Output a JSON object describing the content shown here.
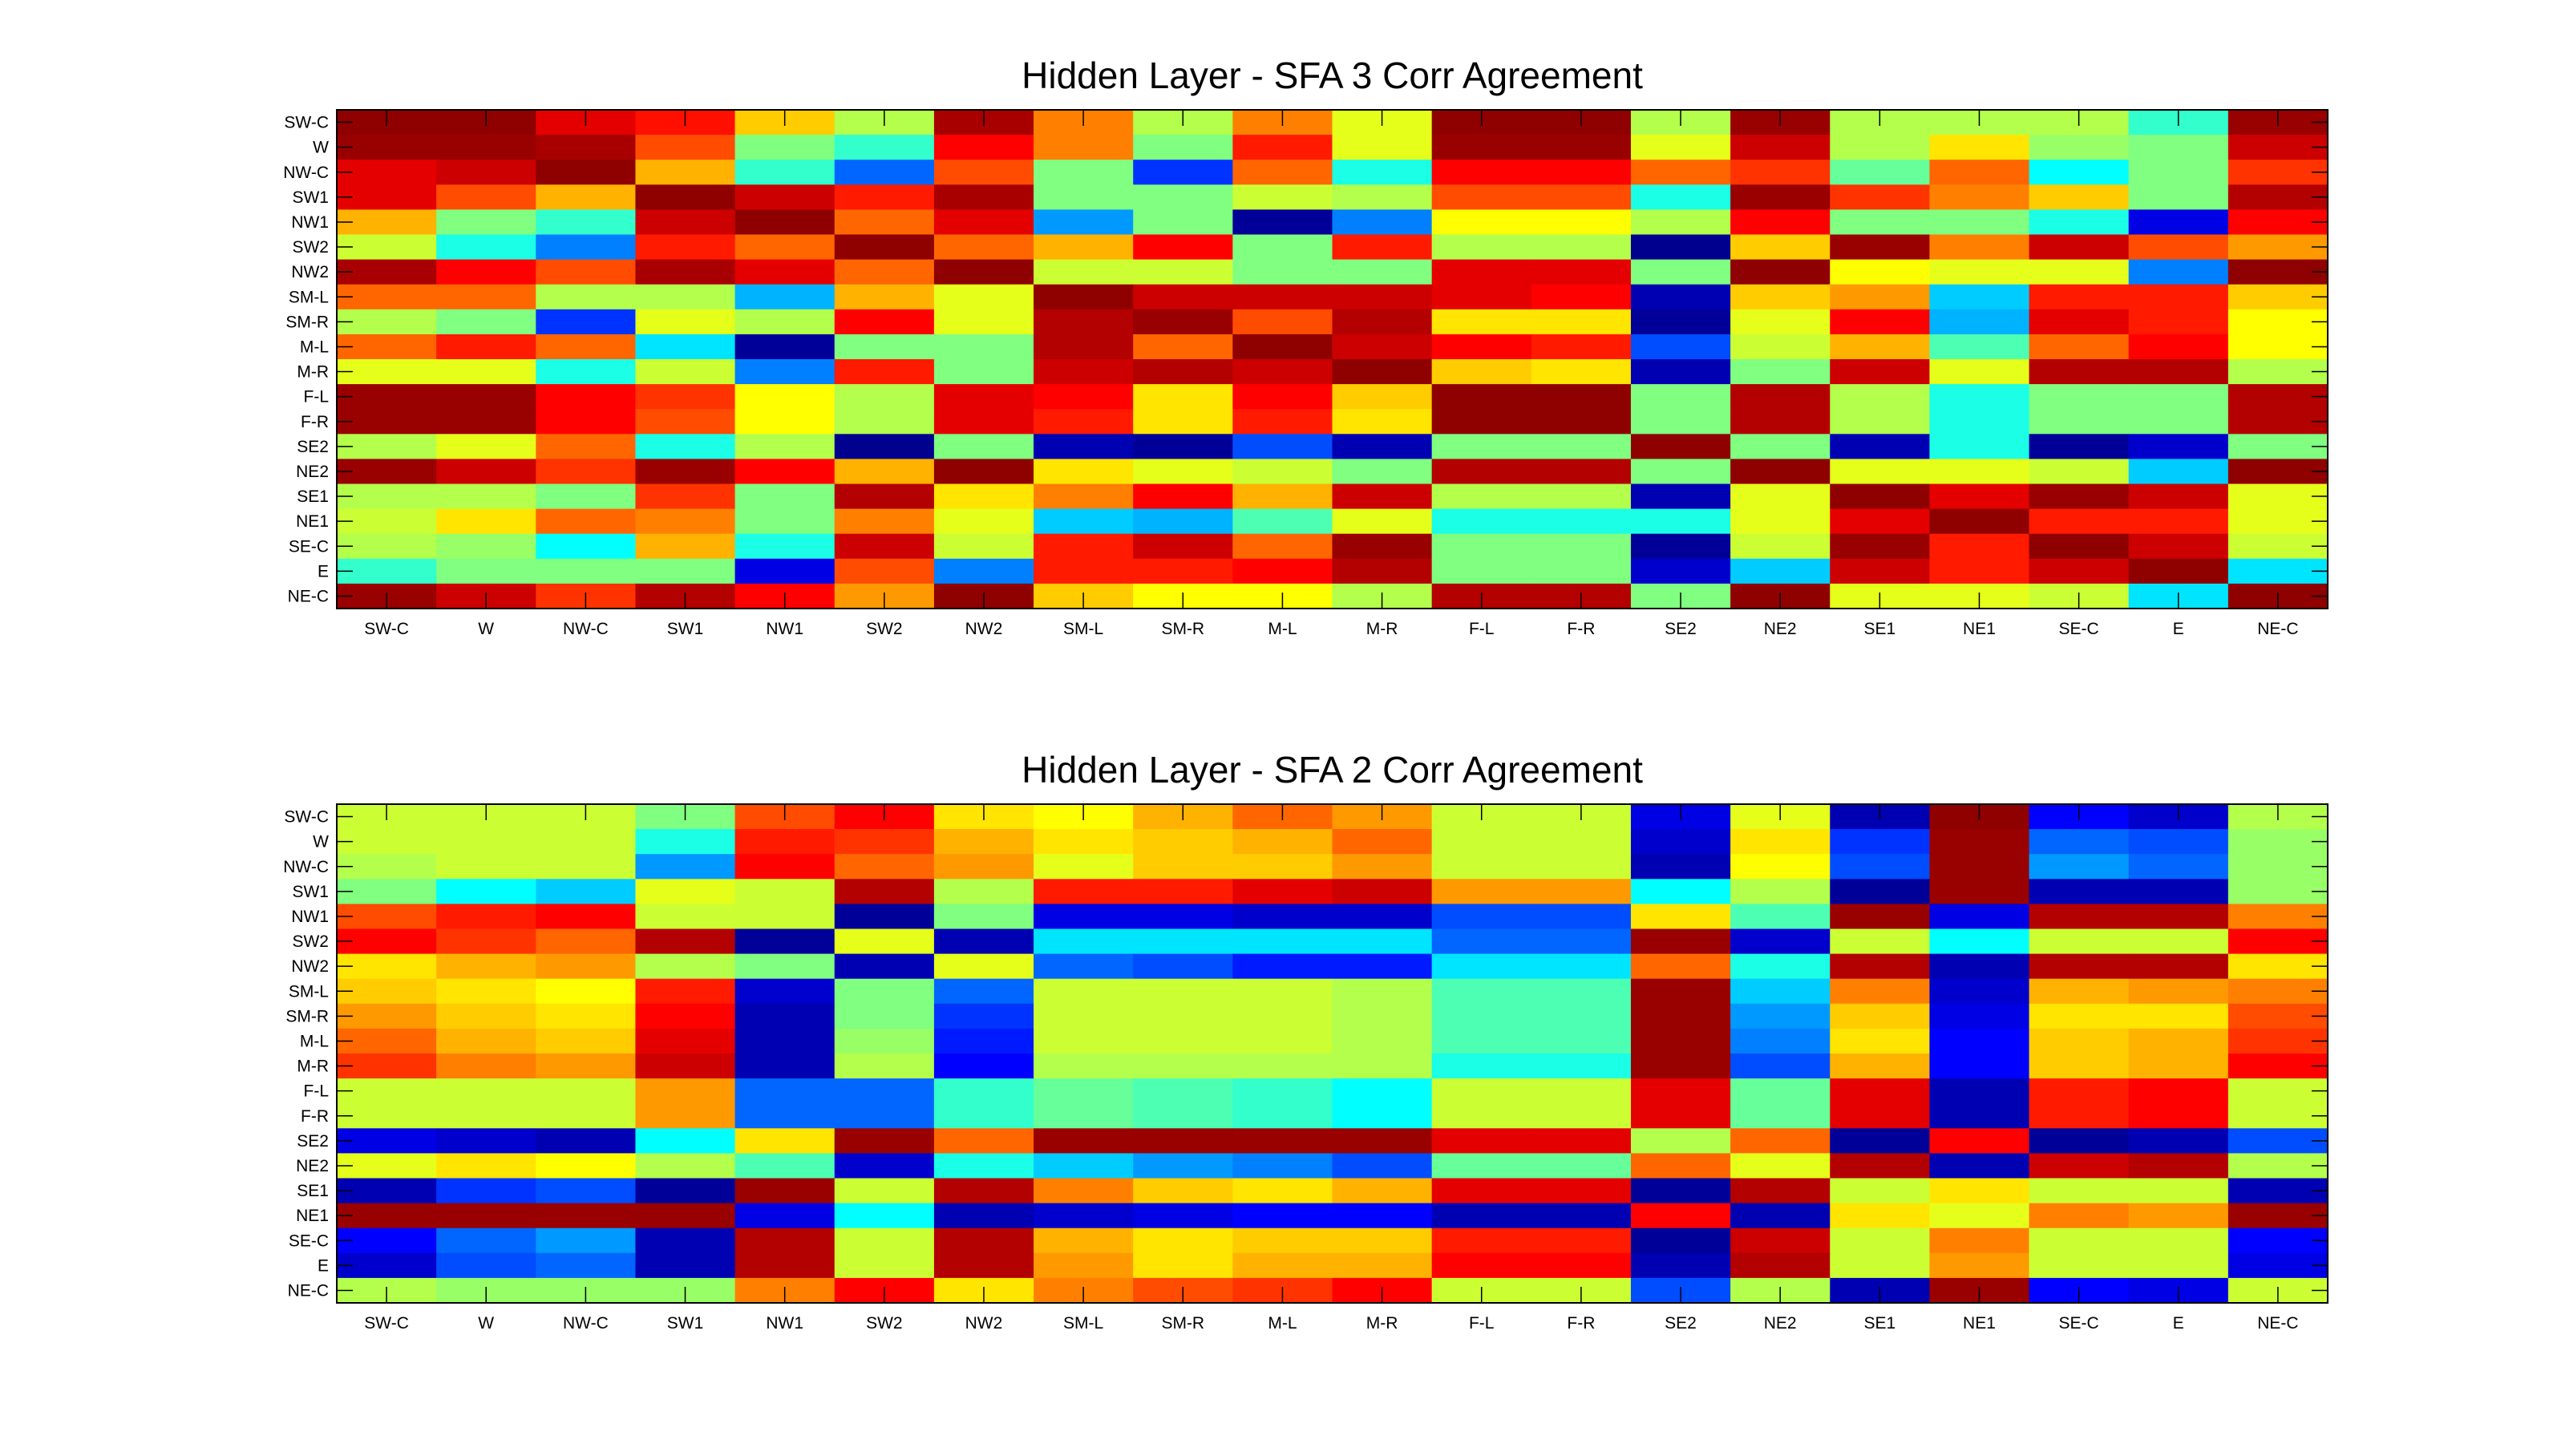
{
  "chart_data": [
    {
      "type": "heatmap",
      "title": "Hidden Layer - SFA 3 Corr Agreement",
      "colormap": "jet",
      "clim": [
        -1,
        1
      ],
      "x_labels": [
        "SW-C",
        "W",
        "NW-C",
        "SW1",
        "NW1",
        "SW2",
        "NW2",
        "SM-L",
        "SM-R",
        "M-L",
        "M-R",
        "F-L",
        "F-R",
        "SE2",
        "NE2",
        "SE1",
        "NE1",
        "SE-C",
        "E",
        "NE-C"
      ],
      "y_labels": [
        "SW-C",
        "W",
        "NW-C",
        "SW1",
        "NW1",
        "SW2",
        "NW2",
        "SM-L",
        "SM-R",
        "M-L",
        "M-R",
        "F-L",
        "F-R",
        "SE2",
        "NE2",
        "SE1",
        "NE1",
        "SE-C",
        "E",
        "NE-C"
      ],
      "values": [
        [
          0.97,
          0.97,
          0.8,
          0.72,
          0.35,
          0.1,
          0.92,
          0.5,
          0.1,
          0.5,
          0.2,
          0.97,
          0.97,
          0.1,
          0.95,
          0.1,
          0.1,
          0.1,
          -0.15,
          0.95
        ],
        [
          0.95,
          0.95,
          0.92,
          0.6,
          0.0,
          -0.15,
          0.75,
          0.5,
          0.0,
          0.7,
          0.2,
          0.95,
          0.95,
          0.2,
          0.85,
          0.1,
          0.3,
          0.05,
          0.0,
          0.85
        ],
        [
          0.8,
          0.85,
          0.97,
          0.4,
          -0.15,
          -0.55,
          0.6,
          0.0,
          -0.65,
          0.55,
          -0.2,
          0.75,
          0.75,
          0.55,
          0.65,
          -0.05,
          0.55,
          -0.25,
          0.0,
          0.65
        ],
        [
          0.8,
          0.6,
          0.4,
          0.97,
          0.85,
          0.7,
          0.92,
          0.0,
          0.0,
          0.15,
          0.1,
          0.6,
          0.6,
          -0.2,
          0.95,
          0.65,
          0.5,
          0.35,
          0.0,
          0.9
        ],
        [
          0.4,
          0.0,
          -0.15,
          0.85,
          0.97,
          0.55,
          0.8,
          -0.45,
          0.0,
          -0.95,
          -0.5,
          0.25,
          0.25,
          0.1,
          0.75,
          0.0,
          0.0,
          -0.2,
          -0.8,
          0.75
        ],
        [
          0.15,
          -0.2,
          -0.5,
          0.7,
          0.55,
          0.97,
          0.55,
          0.4,
          0.75,
          0.0,
          0.7,
          0.1,
          0.1,
          -0.97,
          0.35,
          0.95,
          0.5,
          0.85,
          0.6,
          0.45
        ],
        [
          0.92,
          0.75,
          0.6,
          0.92,
          0.8,
          0.55,
          0.97,
          0.15,
          0.15,
          0.0,
          0.0,
          0.8,
          0.8,
          0.0,
          0.97,
          0.25,
          0.2,
          0.2,
          -0.5,
          0.97
        ],
        [
          0.55,
          0.55,
          0.1,
          0.1,
          -0.4,
          0.4,
          0.2,
          0.97,
          0.85,
          0.85,
          0.85,
          0.8,
          0.75,
          -0.9,
          0.35,
          0.45,
          -0.35,
          0.7,
          0.7,
          0.35
        ],
        [
          0.1,
          0.0,
          -0.65,
          0.2,
          0.1,
          0.75,
          0.2,
          0.9,
          0.95,
          0.6,
          0.9,
          0.3,
          0.3,
          -0.95,
          0.2,
          0.75,
          -0.4,
          0.8,
          0.7,
          0.25
        ],
        [
          0.55,
          0.7,
          0.55,
          -0.3,
          -0.95,
          0.0,
          0.0,
          0.9,
          0.55,
          0.97,
          0.85,
          0.75,
          0.7,
          -0.6,
          0.15,
          0.4,
          -0.1,
          0.55,
          0.75,
          0.25
        ],
        [
          0.2,
          0.2,
          -0.2,
          0.15,
          -0.5,
          0.7,
          0.0,
          0.85,
          0.9,
          0.85,
          0.97,
          0.35,
          0.3,
          -0.9,
          0.0,
          0.85,
          0.2,
          0.9,
          0.9,
          0.1
        ],
        [
          0.95,
          0.95,
          0.75,
          0.65,
          0.25,
          0.1,
          0.8,
          0.75,
          0.3,
          0.75,
          0.35,
          0.97,
          0.97,
          0.0,
          0.9,
          0.1,
          -0.2,
          0.0,
          0.0,
          0.9
        ],
        [
          0.95,
          0.95,
          0.75,
          0.6,
          0.25,
          0.1,
          0.8,
          0.7,
          0.3,
          0.7,
          0.3,
          0.97,
          0.97,
          0.0,
          0.9,
          0.1,
          -0.2,
          0.0,
          0.0,
          0.9
        ],
        [
          0.1,
          0.2,
          0.55,
          -0.2,
          0.1,
          -0.97,
          0.0,
          -0.9,
          -0.95,
          -0.6,
          -0.9,
          0.0,
          0.0,
          0.97,
          0.0,
          -0.9,
          -0.2,
          -0.95,
          -0.85,
          0.0
        ],
        [
          0.95,
          0.85,
          0.65,
          0.95,
          0.75,
          0.4,
          0.97,
          0.3,
          0.2,
          0.15,
          0.0,
          0.9,
          0.9,
          0.0,
          0.97,
          0.2,
          0.2,
          0.15,
          -0.35,
          0.97
        ],
        [
          0.1,
          0.1,
          0.0,
          0.65,
          0.0,
          0.9,
          0.3,
          0.5,
          0.75,
          0.4,
          0.85,
          0.1,
          0.1,
          -0.9,
          0.2,
          0.97,
          0.8,
          0.95,
          0.85,
          0.2
        ],
        [
          0.15,
          0.3,
          0.55,
          0.5,
          0.0,
          0.5,
          0.2,
          -0.35,
          -0.4,
          -0.1,
          0.2,
          -0.2,
          -0.2,
          -0.2,
          0.2,
          0.8,
          0.97,
          0.7,
          0.7,
          0.2
        ],
        [
          0.1,
          0.05,
          -0.25,
          0.4,
          -0.2,
          0.85,
          0.15,
          0.7,
          0.85,
          0.55,
          0.95,
          0.0,
          0.0,
          -0.95,
          0.15,
          0.95,
          0.7,
          0.97,
          0.85,
          0.15
        ],
        [
          -0.15,
          0.0,
          0.0,
          0.0,
          -0.8,
          0.6,
          -0.5,
          0.7,
          0.7,
          0.75,
          0.9,
          0.0,
          0.0,
          -0.85,
          -0.35,
          0.85,
          0.7,
          0.85,
          0.97,
          -0.3
        ],
        [
          0.95,
          0.85,
          0.65,
          0.9,
          0.75,
          0.45,
          0.97,
          0.35,
          0.25,
          0.25,
          0.1,
          0.9,
          0.9,
          0.0,
          0.97,
          0.2,
          0.2,
          0.15,
          -0.3,
          0.97
        ]
      ]
    },
    {
      "type": "heatmap",
      "title": "Hidden Layer - SFA 2 Corr Agreement",
      "colormap": "jet",
      "clim": [
        -1,
        1
      ],
      "x_labels": [
        "SW-C",
        "W",
        "NW-C",
        "SW1",
        "NW1",
        "SW2",
        "NW2",
        "SM-L",
        "SM-R",
        "M-L",
        "M-R",
        "F-L",
        "F-R",
        "SE2",
        "NE2",
        "SE1",
        "NE1",
        "SE-C",
        "E",
        "NE-C"
      ],
      "y_labels": [
        "SW-C",
        "W",
        "NW-C",
        "SW1",
        "NW1",
        "SW2",
        "NW2",
        "SM-L",
        "SM-R",
        "M-L",
        "M-R",
        "F-L",
        "F-R",
        "SE2",
        "NE2",
        "SE1",
        "NE1",
        "SE-C",
        "E",
        "NE-C"
      ],
      "values": [
        [
          0.15,
          0.15,
          0.15,
          0.0,
          0.6,
          0.75,
          0.3,
          0.25,
          0.4,
          0.55,
          0.45,
          0.15,
          0.15,
          -0.8,
          0.2,
          -0.9,
          0.97,
          -0.75,
          -0.85,
          0.1
        ],
        [
          0.15,
          0.15,
          0.15,
          -0.2,
          0.7,
          0.65,
          0.4,
          0.3,
          0.35,
          0.4,
          0.55,
          0.15,
          0.15,
          -0.85,
          0.3,
          -0.65,
          0.95,
          -0.55,
          -0.6,
          0.05
        ],
        [
          0.1,
          0.15,
          0.15,
          -0.45,
          0.75,
          0.55,
          0.45,
          0.2,
          0.35,
          0.35,
          0.45,
          0.15,
          0.15,
          -0.9,
          0.25,
          -0.6,
          0.95,
          -0.45,
          -0.55,
          0.05
        ],
        [
          0.0,
          -0.25,
          -0.35,
          0.2,
          0.15,
          0.9,
          0.1,
          0.7,
          0.7,
          0.8,
          0.85,
          0.45,
          0.45,
          -0.25,
          0.1,
          -0.95,
          0.95,
          -0.9,
          -0.9,
          0.05
        ],
        [
          0.6,
          0.7,
          0.75,
          0.15,
          0.15,
          -0.95,
          0.0,
          -0.8,
          -0.8,
          -0.85,
          -0.85,
          -0.6,
          -0.6,
          0.3,
          -0.1,
          0.95,
          -0.8,
          0.9,
          0.9,
          0.5
        ],
        [
          0.75,
          0.65,
          0.55,
          0.9,
          -0.95,
          0.2,
          -0.9,
          -0.3,
          -0.3,
          -0.3,
          -0.3,
          -0.55,
          -0.55,
          0.95,
          -0.85,
          0.15,
          -0.25,
          0.15,
          0.15,
          0.75
        ],
        [
          0.3,
          0.4,
          0.45,
          0.1,
          0.0,
          -0.9,
          0.2,
          -0.55,
          -0.6,
          -0.7,
          -0.7,
          -0.3,
          -0.3,
          0.55,
          -0.2,
          0.9,
          -0.9,
          0.9,
          0.9,
          0.3
        ],
        [
          0.35,
          0.3,
          0.25,
          0.7,
          -0.85,
          0.0,
          -0.55,
          0.15,
          0.15,
          0.15,
          0.1,
          -0.1,
          -0.1,
          0.95,
          -0.35,
          0.5,
          -0.85,
          0.4,
          0.45,
          0.5
        ],
        [
          0.45,
          0.35,
          0.3,
          0.75,
          -0.9,
          0.0,
          -0.65,
          0.15,
          0.15,
          0.15,
          0.1,
          -0.1,
          -0.1,
          0.95,
          -0.45,
          0.35,
          -0.8,
          0.3,
          0.3,
          0.6
        ],
        [
          0.55,
          0.4,
          0.35,
          0.8,
          -0.9,
          0.05,
          -0.7,
          0.15,
          0.15,
          0.15,
          0.1,
          -0.1,
          -0.1,
          0.95,
          -0.5,
          0.3,
          -0.75,
          0.35,
          0.4,
          0.65
        ],
        [
          0.65,
          0.5,
          0.45,
          0.85,
          -0.9,
          0.1,
          -0.75,
          0.1,
          0.1,
          0.1,
          0.1,
          -0.2,
          -0.2,
          0.95,
          -0.6,
          0.4,
          -0.75,
          0.35,
          0.4,
          0.75
        ],
        [
          0.15,
          0.15,
          0.15,
          0.45,
          -0.55,
          -0.55,
          -0.15,
          -0.05,
          -0.1,
          -0.15,
          -0.25,
          0.15,
          0.15,
          0.8,
          -0.05,
          0.8,
          -0.9,
          0.7,
          0.75,
          0.15
        ],
        [
          0.15,
          0.15,
          0.15,
          0.45,
          -0.55,
          -0.55,
          -0.15,
          -0.05,
          -0.1,
          -0.15,
          -0.25,
          0.15,
          0.15,
          0.8,
          -0.05,
          0.8,
          -0.9,
          0.7,
          0.75,
          0.15
        ],
        [
          -0.8,
          -0.85,
          -0.9,
          -0.25,
          0.3,
          0.95,
          0.55,
          0.95,
          0.95,
          0.95,
          0.95,
          0.8,
          0.8,
          0.1,
          0.55,
          -0.95,
          0.75,
          -0.95,
          -0.9,
          -0.6
        ],
        [
          0.2,
          0.3,
          0.25,
          0.1,
          -0.1,
          -0.85,
          -0.2,
          -0.35,
          -0.45,
          -0.5,
          -0.6,
          -0.05,
          -0.05,
          0.55,
          0.2,
          0.9,
          -0.9,
          0.85,
          0.9,
          0.1
        ],
        [
          -0.9,
          -0.65,
          -0.6,
          -0.95,
          0.95,
          0.15,
          0.9,
          0.5,
          0.35,
          0.3,
          0.4,
          0.8,
          0.8,
          -0.95,
          0.9,
          0.15,
          0.3,
          0.15,
          0.15,
          -0.9
        ],
        [
          0.95,
          0.95,
          0.95,
          0.95,
          -0.8,
          -0.25,
          -0.9,
          -0.85,
          -0.8,
          -0.75,
          -0.75,
          -0.9,
          -0.9,
          0.75,
          -0.9,
          0.3,
          0.2,
          0.5,
          0.45,
          0.95
        ],
        [
          -0.75,
          -0.55,
          -0.45,
          -0.9,
          0.9,
          0.15,
          0.9,
          0.4,
          0.3,
          0.35,
          0.35,
          0.7,
          0.7,
          -0.95,
          0.85,
          0.15,
          0.5,
          0.15,
          0.15,
          -0.75
        ],
        [
          -0.85,
          -0.6,
          -0.55,
          -0.9,
          0.9,
          0.15,
          0.9,
          0.45,
          0.3,
          0.4,
          0.4,
          0.75,
          0.75,
          -0.9,
          0.9,
          0.15,
          0.45,
          0.15,
          0.15,
          -0.8
        ],
        [
          0.1,
          0.05,
          0.05,
          0.05,
          0.5,
          0.75,
          0.3,
          0.5,
          0.6,
          0.65,
          0.75,
          0.15,
          0.15,
          -0.6,
          0.1,
          -0.9,
          0.95,
          -0.75,
          -0.8,
          0.15
        ]
      ]
    }
  ]
}
